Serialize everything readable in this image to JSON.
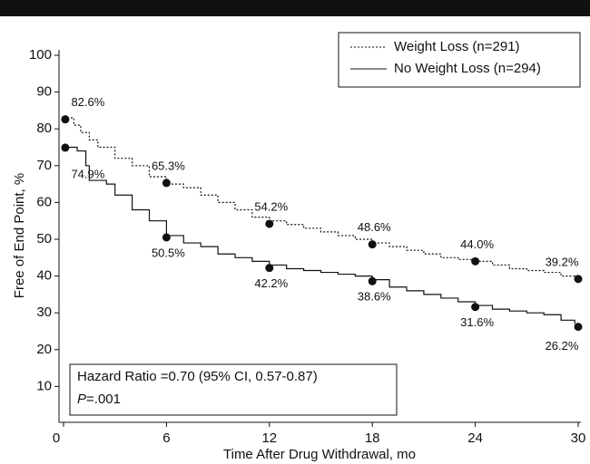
{
  "chart_data": {
    "type": "step",
    "x_label": "Time After Drug Withdrawal, mo",
    "y_label": "Free of End Point, %",
    "xlim": [
      0,
      30
    ],
    "xticks": [
      0,
      6,
      12,
      18,
      24,
      30
    ],
    "ylim": [
      0,
      100
    ],
    "yticks": [
      10,
      20,
      30,
      40,
      50,
      60,
      70,
      80,
      90,
      100
    ],
    "legend": "top-right",
    "series": [
      {
        "name": "Weight Loss (n=291)",
        "color": "#111111",
        "dash": "dotted",
        "x": [
          0,
          0.6,
          1,
          1.5,
          2,
          3,
          4,
          5,
          6,
          7,
          8,
          9,
          10,
          11,
          12,
          13,
          14,
          15,
          16,
          17,
          18,
          19,
          20,
          21,
          22,
          23,
          24,
          25,
          26,
          27,
          28,
          29,
          29.8
        ],
        "values": [
          83,
          81,
          79,
          77,
          75,
          72,
          70,
          67,
          65,
          64,
          62,
          60,
          58,
          56,
          55,
          54,
          53,
          52,
          51,
          50,
          49,
          48,
          47,
          46,
          45,
          44.5,
          44,
          43,
          42,
          41.5,
          41,
          40,
          39
        ]
      },
      {
        "name": "No Weight Loss (n=294)",
        "color": "#111111",
        "dash": "solid",
        "x": [
          0,
          0.8,
          1.3,
          1.5,
          2.5,
          3,
          4,
          5,
          6,
          7,
          8,
          9,
          10,
          11,
          12,
          13,
          14,
          15,
          16,
          17,
          18,
          19,
          20,
          21,
          22,
          23,
          24,
          25,
          26,
          27,
          28,
          29,
          29.8
        ],
        "values": [
          75,
          74,
          70,
          66,
          65,
          62,
          58,
          55,
          51,
          49,
          48,
          46,
          45,
          44,
          43,
          42,
          41.5,
          41,
          40.5,
          40,
          39,
          37,
          36,
          35,
          34,
          33,
          32,
          31,
          30.5,
          30,
          29.5,
          28,
          27
        ]
      }
    ],
    "markers": [
      {
        "x": [
          0.1,
          6,
          12,
          18,
          24,
          30
        ],
        "values": [
          82.6,
          65.3,
          54.2,
          48.6,
          44.0,
          39.2
        ],
        "value_labels": [
          "82.6%",
          "65.3%",
          "54.2%",
          "48.6%",
          "44.0%",
          "39.2%"
        ]
      },
      {
        "x": [
          0.1,
          6,
          12,
          18,
          24,
          30
        ],
        "values": [
          74.9,
          50.5,
          42.2,
          38.6,
          31.6,
          26.2
        ],
        "value_labels": [
          "74.9%",
          "50.5%",
          "42.2%",
          "38.6%",
          "31.6%",
          "26.2%"
        ]
      }
    ],
    "annotation": "Hazard Ratio =0.70 (95% CI, 0.57-0.87)",
    "p_symbol": "P",
    "p_value": "=.001"
  }
}
